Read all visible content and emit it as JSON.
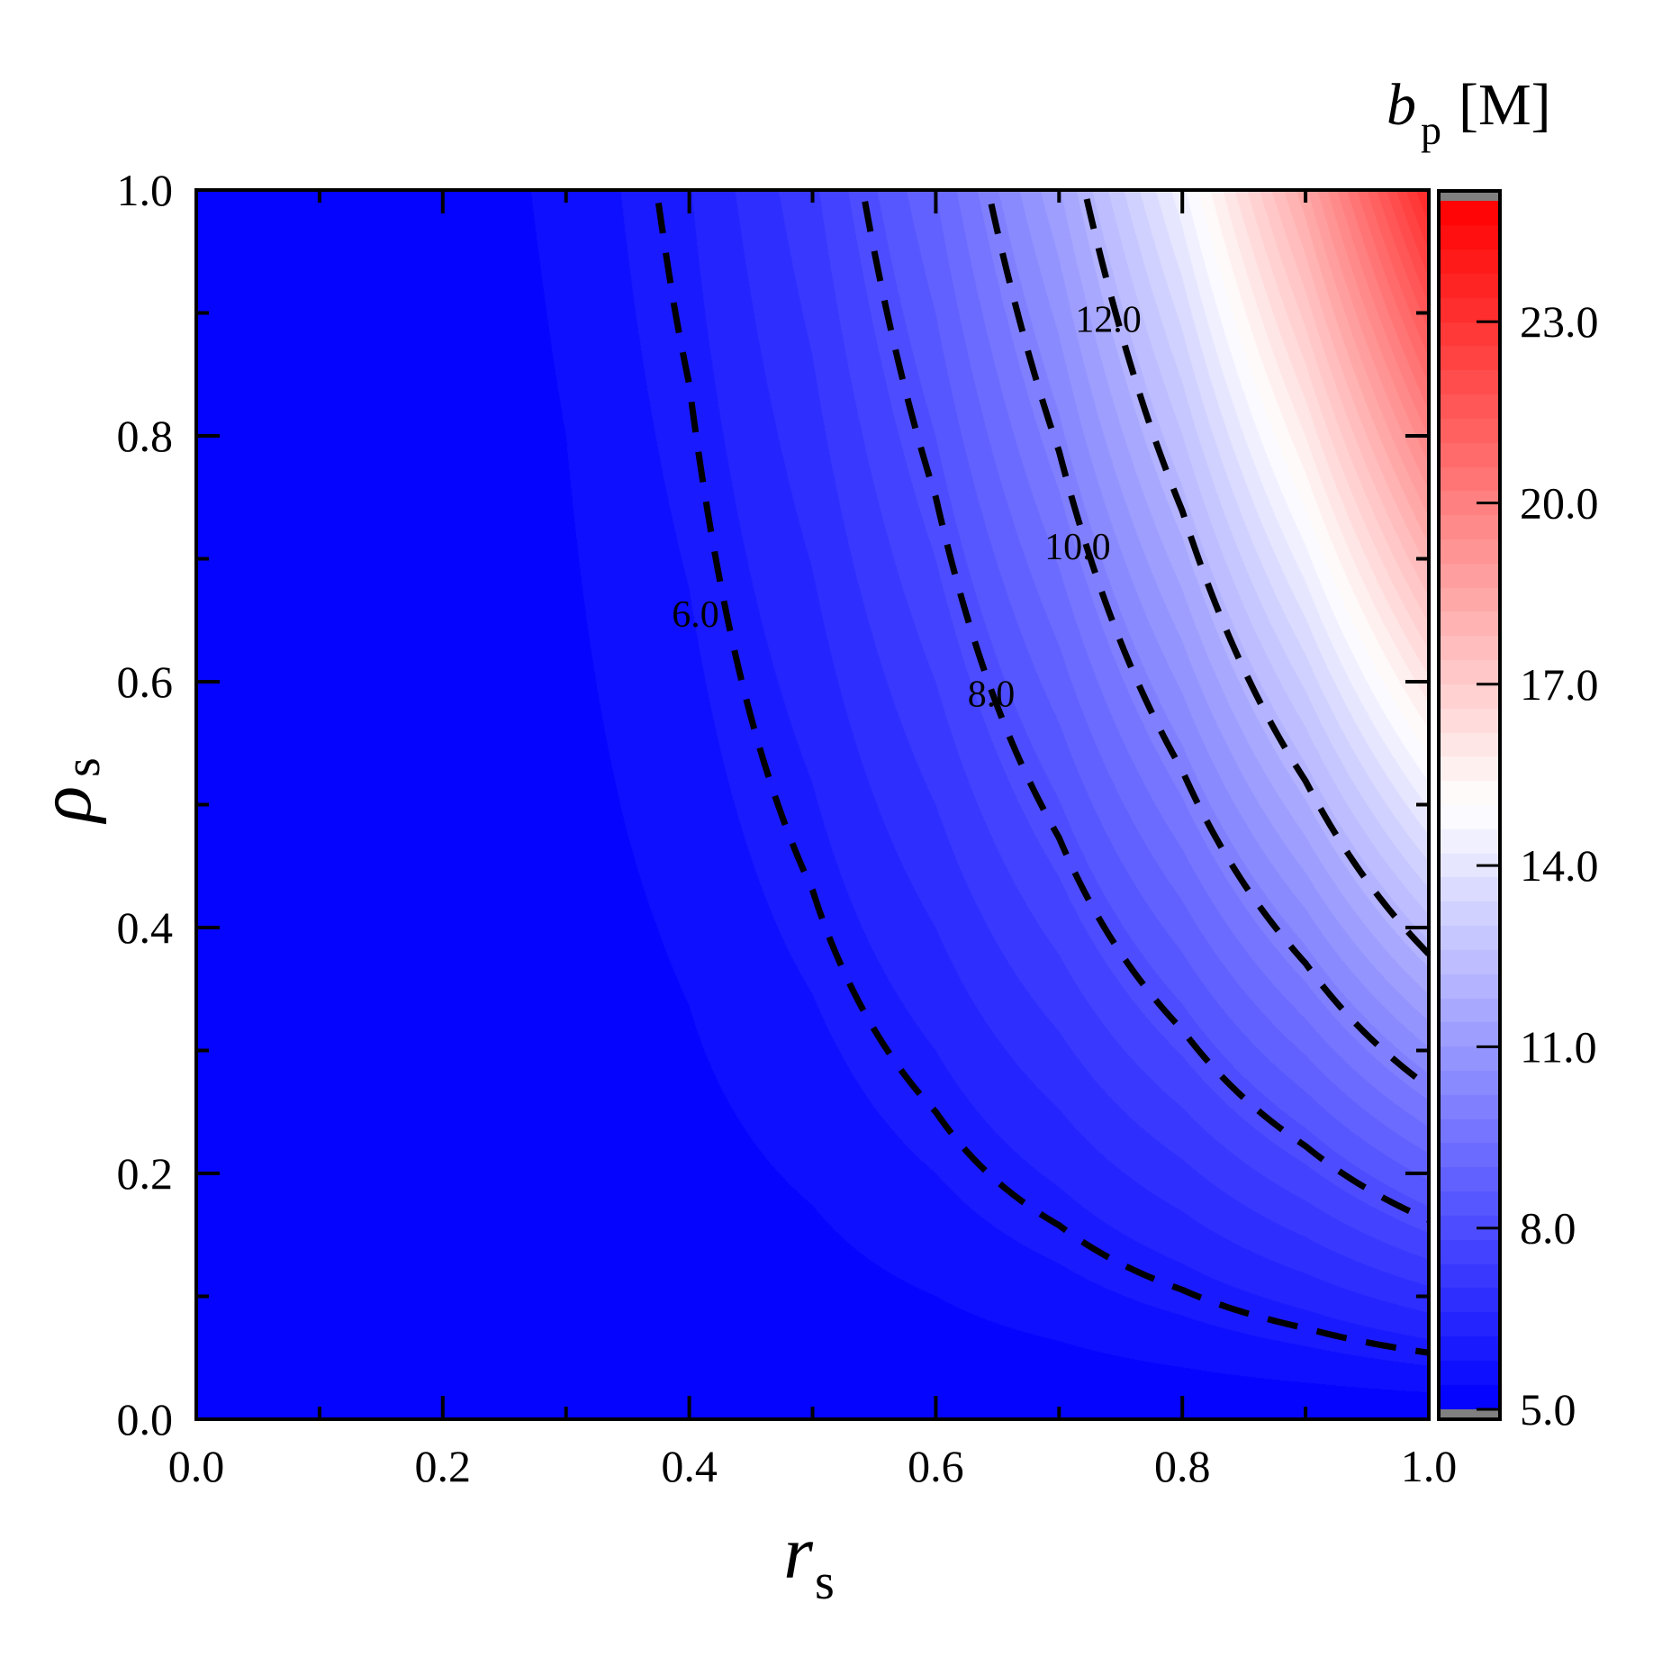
{
  "chart_data": {
    "type": "heatmap",
    "title": "",
    "xlabel": "r",
    "xlabel_sub": "s",
    "ylabel": "ρ",
    "ylabel_sub": "s",
    "xlim": [
      0,
      1
    ],
    "ylim": [
      0,
      1
    ],
    "xticks": [
      "0.0",
      "0.2",
      "0.4",
      "0.6",
      "0.8",
      "1.0"
    ],
    "yticks": [
      "0.0",
      "0.2",
      "0.4",
      "0.6",
      "0.8",
      "1.0"
    ],
    "grid": false,
    "x": [
      0,
      0.1,
      0.2,
      0.3,
      0.4,
      0.5,
      0.6,
      0.7,
      0.8,
      0.9,
      1.0
    ],
    "y": [
      0,
      0.1,
      0.2,
      0.3,
      0.4,
      0.5,
      0.6,
      0.7,
      0.8,
      0.9,
      1.0
    ],
    "z": [
      [
        5,
        5,
        5,
        5,
        5,
        5,
        5,
        5,
        5,
        5,
        5
      ],
      [
        5,
        5,
        5.01,
        5.05,
        5.12,
        5.23,
        5.4,
        5.63,
        5.95,
        6.35,
        6.85
      ],
      [
        5,
        5,
        5.03,
        5.1,
        5.24,
        5.46,
        5.8,
        6.27,
        6.89,
        7.7,
        8.7
      ],
      [
        5,
        5.01,
        5.04,
        5.15,
        5.36,
        5.69,
        6.2,
        6.9,
        7.84,
        9.05,
        10.55
      ],
      [
        5,
        5.01,
        5.06,
        5.2,
        5.47,
        5.93,
        6.6,
        7.54,
        8.79,
        10.39,
        12.4
      ],
      [
        5,
        5.01,
        5.07,
        5.25,
        5.59,
        6.16,
        7,
        8.17,
        9.74,
        11.74,
        14.25
      ],
      [
        5,
        5.01,
        5.09,
        5.3,
        5.71,
        6.39,
        7.4,
        8.81,
        10.68,
        13.09,
        16.1
      ],
      [
        5,
        5.01,
        5.1,
        5.35,
        5.83,
        6.62,
        7.8,
        9.44,
        11.63,
        14.44,
        17.95
      ],
      [
        5,
        5.01,
        5.12,
        5.4,
        5.95,
        6.85,
        8.2,
        10.08,
        12.58,
        15.79,
        19.8
      ],
      [
        5,
        5.02,
        5.13,
        5.45,
        6.07,
        7.08,
        8.6,
        10.71,
        13.52,
        17.14,
        21.65
      ],
      [
        5,
        5.02,
        5.15,
        5.5,
        6.18,
        7.31,
        9,
        11.35,
        14.47,
        18.49,
        23.5
      ]
    ],
    "colorbar": {
      "title": "b",
      "title_sub": "p",
      "title_unit": "[M]",
      "range": [
        5,
        25
      ],
      "ticks": [
        "5.0",
        "8.0",
        "11.0",
        "14.0",
        "17.0",
        "20.0",
        "23.0"
      ],
      "colors": {
        "low": "#0000ff",
        "mid": "#ffffff",
        "high": "#ff0000",
        "out_of_range": "#808080"
      },
      "mid_value": 15
    },
    "contours": [
      {
        "level": 6.0,
        "label": "6.0",
        "label_at": [
          0.405,
          0.655
        ]
      },
      {
        "level": 8.0,
        "label": "8.0",
        "label_at": [
          0.645,
          0.59
        ]
      },
      {
        "level": 10.0,
        "label": "10.0",
        "label_at": [
          0.715,
          0.71
        ]
      },
      {
        "level": 12.0,
        "label": "12.0",
        "label_at": [
          0.74,
          0.895
        ]
      }
    ],
    "contour_style": "dashed black"
  }
}
